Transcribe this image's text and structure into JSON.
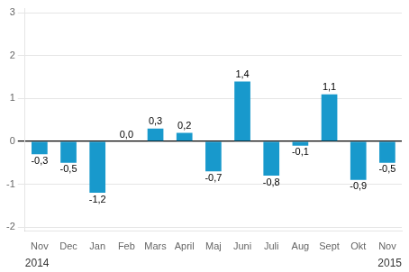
{
  "chart_data": {
    "type": "bar",
    "categories": [
      "Nov",
      "Dec",
      "Jan",
      "Feb",
      "Mars",
      "April",
      "Maj",
      "Juni",
      "Juli",
      "Aug",
      "Sept",
      "Okt",
      "Nov"
    ],
    "values": [
      -0.3,
      -0.5,
      -1.2,
      0.0,
      0.3,
      0.2,
      -0.7,
      1.4,
      -0.8,
      -0.1,
      1.1,
      -0.9,
      -0.5
    ],
    "value_labels": [
      "-0,3",
      "-0,5",
      "-1,2",
      "0,0",
      "0,3",
      "0,2",
      "-0,7",
      "1,4",
      "-0,8",
      "-0,1",
      "1,1",
      "-0,9",
      "-0,5"
    ],
    "data_labels": true,
    "color": "#1899cc",
    "ylim": [
      -2.1,
      3.1
    ],
    "yticks": [
      -2,
      -1,
      0,
      1,
      2,
      3
    ],
    "grid": true,
    "annotations": [
      "2014",
      "2015"
    ]
  }
}
